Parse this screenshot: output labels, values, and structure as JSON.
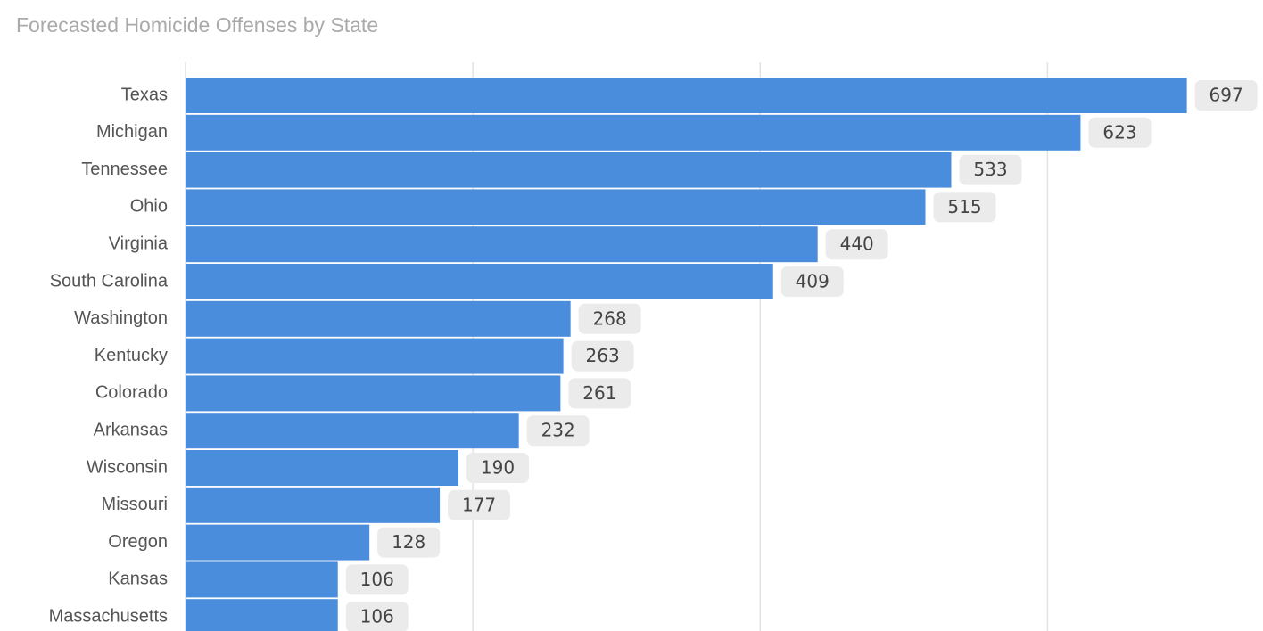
{
  "chart_data": {
    "type": "bar",
    "orientation": "horizontal",
    "title": "Forecasted Homicide Offenses by State",
    "categories": [
      "Texas",
      "Michigan",
      "Tennessee",
      "Ohio",
      "Virginia",
      "South Carolina",
      "Washington",
      "Kentucky",
      "Colorado",
      "Arkansas",
      "Wisconsin",
      "Missouri",
      "Oregon",
      "Kansas",
      "Massachusetts"
    ],
    "values": [
      697,
      623,
      533,
      515,
      440,
      409,
      268,
      263,
      261,
      232,
      190,
      177,
      128,
      106,
      106
    ],
    "color": "#4a8ddc",
    "xlim": [
      0,
      750
    ],
    "xticks": [
      0,
      200,
      400,
      600
    ],
    "grid": true
  }
}
